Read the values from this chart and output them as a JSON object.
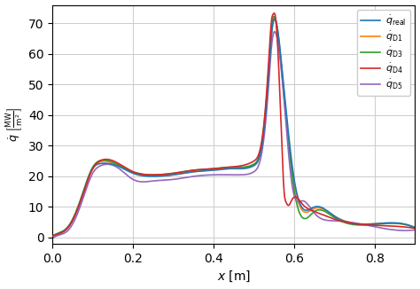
{
  "title": "",
  "xlabel": "$x$ [m]",
  "ylabel": "$\\dot{q}$ $\\left[\\frac{\\mathrm{MW}}{\\mathrm{m}^2}\\right]$",
  "xlim": [
    0.0,
    0.9
  ],
  "ylim": [
    -2,
    76
  ],
  "yticks": [
    0,
    10,
    20,
    30,
    40,
    50,
    60,
    70
  ],
  "xticks": [
    0.0,
    0.2,
    0.4,
    0.6,
    0.8
  ],
  "lines": {
    "q_real": {
      "color": "#1f77b4",
      "label": "$\\dot{q}_\\mathrm{real}$",
      "zorder": 3
    },
    "q_D1": {
      "color": "#ff7f0e",
      "label": "$\\dot{q}_\\mathrm{D1}$",
      "zorder": 2
    },
    "q_D3": {
      "color": "#2ca02c",
      "label": "$\\dot{q}_\\mathrm{D3}$",
      "zorder": 2
    },
    "q_D4": {
      "color": "#d62728",
      "label": "$\\dot{q}_\\mathrm{D4}$",
      "zorder": 4
    },
    "q_D5": {
      "color": "#9467bd",
      "label": "$\\dot{q}_\\mathrm{D5}$",
      "zorder": 2
    }
  },
  "background_color": "#ffffff",
  "grid_color": "#cccccc",
  "linewidth": 1.2,
  "x_real": [
    0.0,
    0.01,
    0.04,
    0.07,
    0.1,
    0.12,
    0.16,
    0.2,
    0.25,
    0.3,
    0.35,
    0.4,
    0.44,
    0.47,
    0.5,
    0.52,
    0.535,
    0.545,
    0.555,
    0.57,
    0.6,
    0.65,
    0.7,
    0.8,
    0.9
  ],
  "y_real": [
    0.5,
    1.0,
    3.5,
    12.0,
    22.5,
    24.2,
    23.5,
    21.0,
    20.0,
    20.5,
    21.5,
    22.0,
    22.5,
    22.5,
    23.5,
    30.0,
    50.0,
    68.0,
    70.5,
    55.0,
    19.0,
    10.0,
    7.0,
    4.5,
    3.2
  ],
  "x_D1": [
    0.0,
    0.01,
    0.04,
    0.07,
    0.1,
    0.12,
    0.16,
    0.2,
    0.25,
    0.3,
    0.35,
    0.4,
    0.44,
    0.47,
    0.5,
    0.52,
    0.535,
    0.545,
    0.555,
    0.57,
    0.6,
    0.65,
    0.7,
    0.8,
    0.9
  ],
  "y_D1": [
    0.5,
    1.0,
    3.5,
    12.0,
    22.5,
    24.8,
    23.8,
    21.3,
    20.2,
    20.5,
    21.5,
    22.2,
    22.8,
    22.8,
    23.8,
    30.0,
    50.0,
    68.0,
    70.2,
    53.0,
    17.5,
    9.5,
    7.0,
    4.5,
    3.2
  ],
  "x_D3": [
    0.0,
    0.01,
    0.04,
    0.07,
    0.1,
    0.12,
    0.16,
    0.2,
    0.25,
    0.3,
    0.35,
    0.4,
    0.44,
    0.47,
    0.5,
    0.52,
    0.535,
    0.545,
    0.555,
    0.57,
    0.6,
    0.65,
    0.7,
    0.8,
    0.9
  ],
  "y_D3": [
    0.5,
    1.2,
    3.8,
    12.5,
    23.0,
    25.2,
    24.0,
    21.5,
    20.5,
    21.0,
    22.0,
    22.5,
    23.0,
    23.0,
    24.0,
    31.0,
    52.0,
    69.5,
    70.8,
    53.5,
    15.5,
    8.5,
    6.5,
    4.3,
    3.2
  ],
  "x_D4": [
    0.0,
    0.01,
    0.04,
    0.07,
    0.1,
    0.12,
    0.16,
    0.2,
    0.25,
    0.3,
    0.35,
    0.4,
    0.44,
    0.47,
    0.5,
    0.52,
    0.535,
    0.545,
    0.548,
    0.553,
    0.56,
    0.568,
    0.575,
    0.58,
    0.585,
    0.595,
    0.62,
    0.65,
    0.7,
    0.8,
    0.9
  ],
  "y_D4": [
    0.5,
    1.0,
    3.5,
    12.0,
    22.5,
    25.2,
    24.5,
    21.5,
    20.5,
    21.0,
    22.0,
    22.5,
    23.0,
    23.5,
    25.0,
    32.0,
    54.0,
    72.0,
    73.0,
    72.5,
    60.0,
    35.0,
    15.0,
    11.5,
    10.5,
    12.5,
    11.0,
    8.5,
    6.0,
    4.0,
    3.0
  ],
  "x_D5": [
    0.0,
    0.01,
    0.04,
    0.07,
    0.1,
    0.12,
    0.16,
    0.2,
    0.25,
    0.3,
    0.35,
    0.4,
    0.44,
    0.47,
    0.5,
    0.52,
    0.535,
    0.545,
    0.555,
    0.57,
    0.595,
    0.62,
    0.65,
    0.7,
    0.8,
    0.9
  ],
  "y_D5": [
    -0.3,
    0.5,
    2.5,
    10.5,
    21.0,
    23.5,
    23.0,
    19.0,
    18.5,
    19.0,
    20.0,
    20.5,
    20.5,
    20.5,
    21.5,
    28.0,
    47.0,
    64.0,
    66.5,
    52.0,
    17.0,
    12.0,
    8.0,
    5.5,
    3.5,
    2.5
  ]
}
